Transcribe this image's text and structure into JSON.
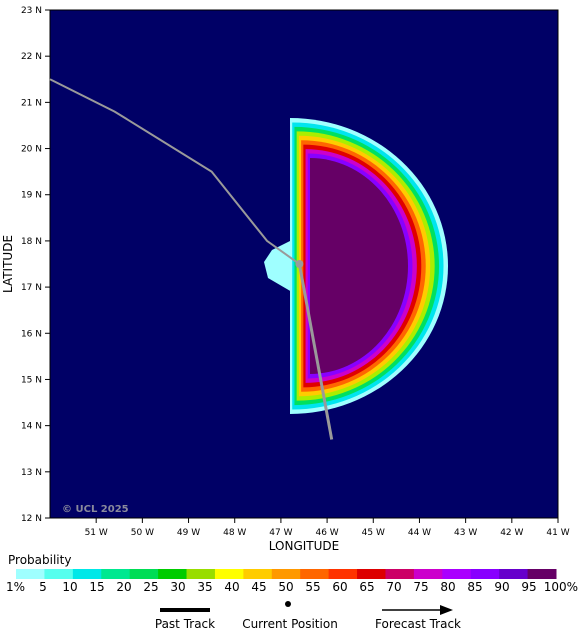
{
  "map": {
    "credit": "© UCL 2025",
    "x_axis_title": "LONGITUDE",
    "y_axis_title": "LATITUDE",
    "background_color": "#000066",
    "lon_range": [
      -52,
      -41
    ],
    "lat_range": [
      12,
      23
    ],
    "lon_ticks": [
      {
        "value": -51,
        "label": "51 W"
      },
      {
        "value": -50,
        "label": "50 W"
      },
      {
        "value": -49,
        "label": "49 W"
      },
      {
        "value": -48,
        "label": "48 W"
      },
      {
        "value": -47,
        "label": "47 W"
      },
      {
        "value": -46,
        "label": "46 W"
      },
      {
        "value": -45,
        "label": "45 W"
      },
      {
        "value": -44,
        "label": "44 W"
      },
      {
        "value": -43,
        "label": "43 W"
      },
      {
        "value": -42,
        "label": "42 W"
      },
      {
        "value": -41,
        "label": "41 W"
      }
    ],
    "lat_ticks": [
      {
        "value": 12,
        "label": "12 N"
      },
      {
        "value": 13,
        "label": "13 N"
      },
      {
        "value": 14,
        "label": "14 N"
      },
      {
        "value": 15,
        "label": "15 N"
      },
      {
        "value": 16,
        "label": "16 N"
      },
      {
        "value": 17,
        "label": "17 N"
      },
      {
        "value": 18,
        "label": "18 N"
      },
      {
        "value": 19,
        "label": "19 N"
      },
      {
        "value": 20,
        "label": "20 N"
      },
      {
        "value": 21,
        "label": "21 N"
      },
      {
        "value": 22,
        "label": "22 N"
      },
      {
        "value": 23,
        "label": "23 N"
      }
    ],
    "past_track": [
      {
        "lon": -52.0,
        "lat": 21.5
      },
      {
        "lon": -50.6,
        "lat": 20.8
      },
      {
        "lon": -48.5,
        "lat": 19.5
      },
      {
        "lon": -47.3,
        "lat": 18.0
      },
      {
        "lon": -46.6,
        "lat": 17.5
      }
    ],
    "current_position": {
      "lon": -46.6,
      "lat": 17.5
    },
    "forecast_track": [
      {
        "lon": -46.6,
        "lat": 17.5
      },
      {
        "lon": -45.9,
        "lat": 13.7
      }
    ],
    "probability_region": {
      "description_center": {
        "lon": -46.5,
        "lat": 17.2
      },
      "bands": [
        {
          "level": 1,
          "color": "#9fffff"
        },
        {
          "level": 10,
          "color": "#00e5ee"
        },
        {
          "level": 25,
          "color": "#00e060"
        },
        {
          "level": 35,
          "color": "#aaee00"
        },
        {
          "level": 45,
          "color": "#ffcc00"
        },
        {
          "level": 55,
          "color": "#ff6600"
        },
        {
          "level": 65,
          "color": "#e00000"
        },
        {
          "level": 75,
          "color": "#cc00cc"
        },
        {
          "level": 85,
          "color": "#8800ff"
        },
        {
          "level": 95,
          "color": "#660066"
        }
      ]
    }
  },
  "legend": {
    "title": "Probability",
    "colors": [
      "#9fffff",
      "#55ffee",
      "#00e8e8",
      "#00e890",
      "#00dd55",
      "#00cc00",
      "#99dd00",
      "#ffff00",
      "#ffcc00",
      "#ff9900",
      "#ff6600",
      "#ff3300",
      "#dd0000",
      "#cc0066",
      "#cc00cc",
      "#aa00ff",
      "#8800ff",
      "#6600cc",
      "#660066"
    ],
    "labels": [
      "1%",
      "5",
      "10",
      "15",
      "20",
      "25",
      "30",
      "35",
      "40",
      "45",
      "50",
      "55",
      "60",
      "65",
      "70",
      "75",
      "80",
      "85",
      "90",
      "95",
      "100%"
    ],
    "past_track_label": "Past Track",
    "current_position_label": "Current Position",
    "forecast_track_label": "Forecast Track"
  }
}
